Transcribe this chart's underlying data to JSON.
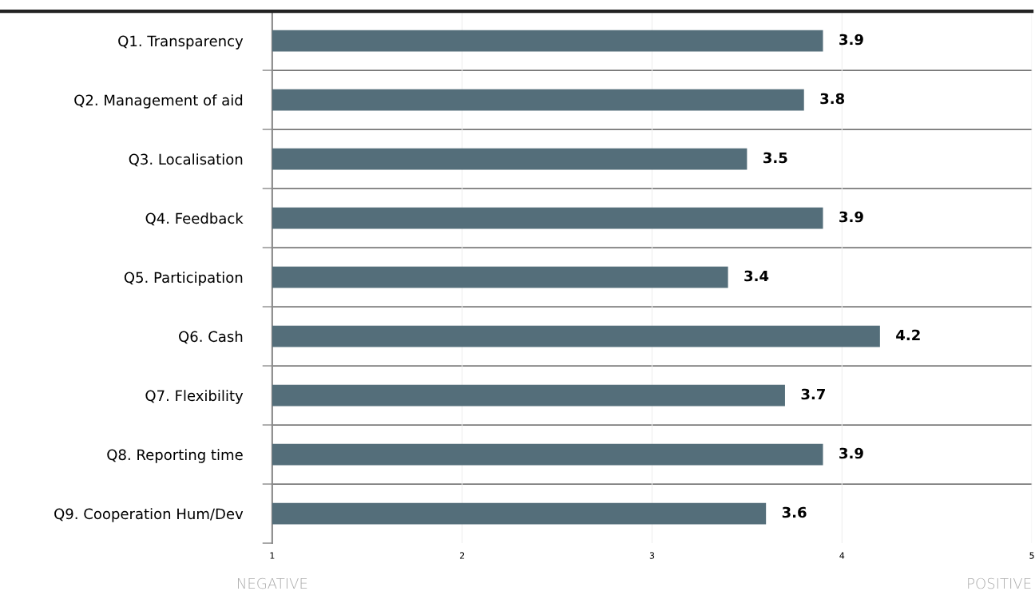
{
  "chart_data": {
    "type": "bar",
    "orientation": "horizontal",
    "categories": [
      "Q1. Transparency",
      "Q2. Management of aid",
      "Q3. Localisation",
      "Q4. Feedback",
      "Q5. Participation",
      "Q6. Cash",
      "Q7. Flexibility",
      "Q8. Reporting time",
      "Q9. Cooperation Hum/Dev"
    ],
    "values": [
      3.9,
      3.8,
      3.5,
      3.9,
      3.4,
      4.2,
      3.7,
      3.9,
      3.6
    ],
    "color": "#546e7a",
    "xlim": [
      1,
      5
    ],
    "xticks": [
      1,
      2,
      3,
      4,
      5
    ],
    "grid": true,
    "data_labels": true,
    "annotations": [
      "NEGATIVE",
      "POSITIVE"
    ]
  }
}
